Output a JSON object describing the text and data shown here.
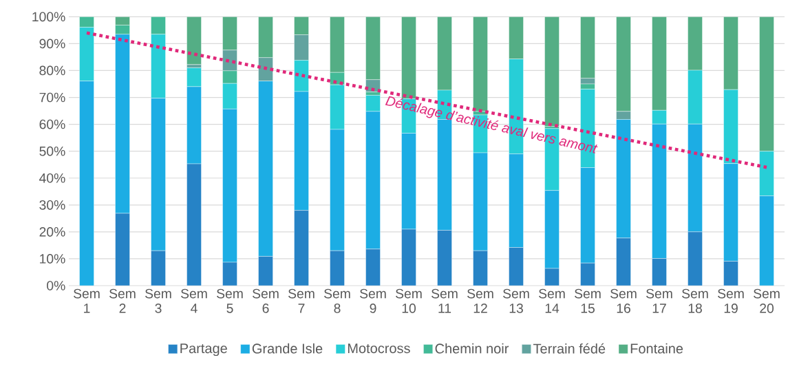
{
  "chart_data": {
    "type": "bar",
    "stacked": true,
    "grid": "y",
    "legend": "bottom",
    "categories": [
      "Sem 1",
      "Sem 2",
      "Sem 3",
      "Sem 4",
      "Sem 5",
      "Sem 6",
      "Sem 7",
      "Sem 8",
      "Sem 9",
      "Sem 10",
      "Sem 11",
      "Sem 12",
      "Sem 13",
      "Sem 14",
      "Sem 15",
      "Sem 16",
      "Sem 17",
      "Sem 18",
      "Sem 19",
      "Sem 20"
    ],
    "ylim": [
      0,
      100
    ],
    "yticks": [
      {
        "value": 0,
        "label": "0%"
      },
      {
        "value": 10,
        "label": "10%"
      },
      {
        "value": 20,
        "label": "20%"
      },
      {
        "value": 30,
        "label": "30%"
      },
      {
        "value": 40,
        "label": "40%"
      },
      {
        "value": 50,
        "label": "50%"
      },
      {
        "value": 60,
        "label": "60%"
      },
      {
        "value": 70,
        "label": "70%"
      },
      {
        "value": 80,
        "label": "80%"
      },
      {
        "value": 90,
        "label": "90%"
      },
      {
        "value": 100,
        "label": "100%"
      }
    ],
    "series": [
      {
        "name": "Partage",
        "color": "#2683c6",
        "values": [
          0,
          26.9,
          13.0,
          45.3,
          8.7,
          10.9,
          28.0,
          13.0,
          13.6,
          21.0,
          20.6,
          13.0,
          14.2,
          6.4,
          8.4,
          17.7,
          10.1,
          20.0,
          9.1,
          0
        ]
      },
      {
        "name": "Grande Isle",
        "color": "#1cade4",
        "values": [
          76.1,
          66.6,
          56.7,
          28.7,
          57.0,
          65.2,
          44.2,
          45.1,
          51.2,
          35.7,
          41.2,
          36.4,
          34.8,
          29.0,
          35.5,
          44.1,
          50.0,
          40.1,
          36.3,
          33.4
        ]
      },
      {
        "name": "Motocross",
        "color": "#27ced7",
        "values": [
          20.0,
          0,
          23.8,
          7.0,
          9.5,
          0,
          11.6,
          16.6,
          6.0,
          12.8,
          10.9,
          14.1,
          35.3,
          23.0,
          29.2,
          0,
          5.1,
          20.0,
          27.5,
          16.6
        ]
      },
      {
        "name": "Chemin noir",
        "color": "#42ba97",
        "values": [
          3.9,
          3.4,
          6.5,
          0,
          4.7,
          0,
          0,
          4.6,
          1.2,
          0,
          0,
          1.3,
          0,
          0.8,
          1.9,
          0,
          0,
          0,
          0,
          0
        ]
      },
      {
        "name": "Terrain fédé",
        "color": "#62a39f",
        "values": [
          0,
          0,
          0,
          1.2,
          7.7,
          8.7,
          9.5,
          0,
          4.6,
          0,
          0,
          0,
          0,
          0,
          2.1,
          3.0,
          0,
          0,
          0,
          0
        ]
      },
      {
        "name": "Fontaine",
        "color": "#54ae85",
        "values": [
          0,
          3.1,
          0,
          17.8,
          12.4,
          15.2,
          6.7,
          20.7,
          23.4,
          30.5,
          27.3,
          35.2,
          15.7,
          40.8,
          22.9,
          35.2,
          34.8,
          19.9,
          27.1,
          50.0
        ]
      },
      {
        "type": "line",
        "color": "#e0297a",
        "line_style": "dotted",
        "values": [
          94,
          null,
          null,
          null,
          null,
          null,
          null,
          null,
          null,
          null,
          null,
          null,
          null,
          null,
          null,
          null,
          null,
          null,
          null,
          44
        ]
      }
    ],
    "annotations": [
      "Décalage d’activité aval vers amont"
    ]
  }
}
